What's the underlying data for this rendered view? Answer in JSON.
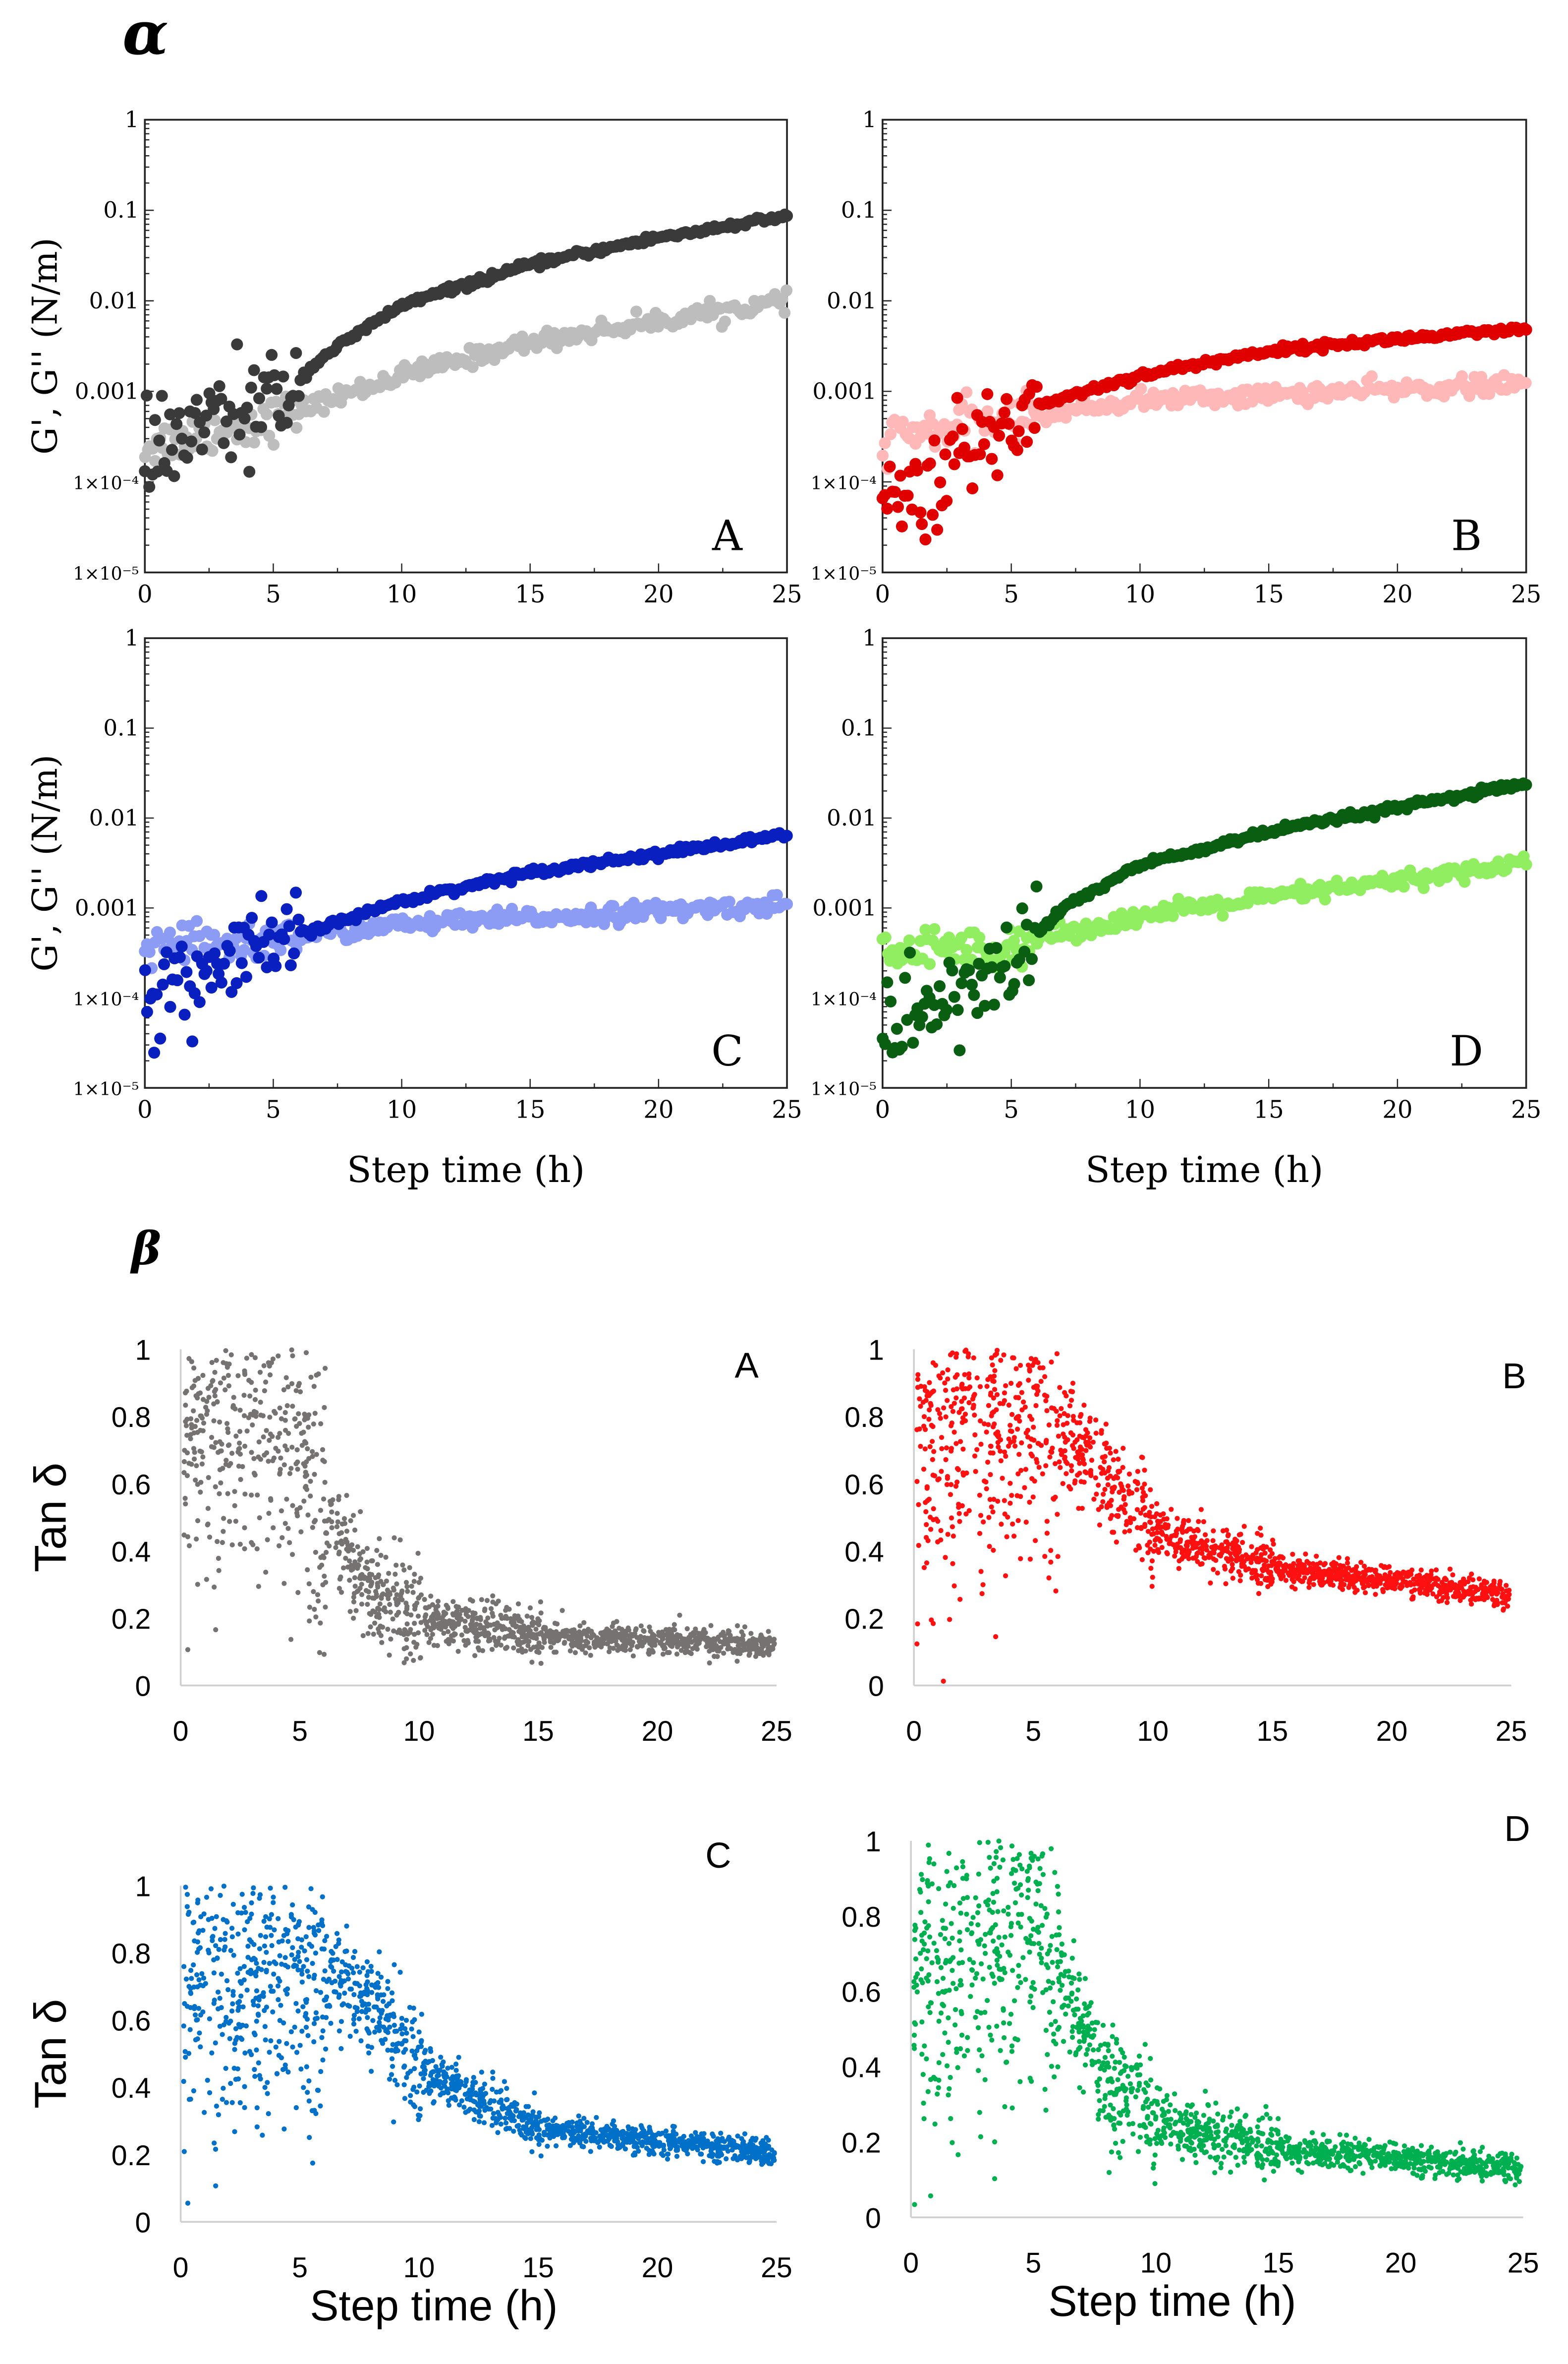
{
  "sections": {
    "alpha": "α",
    "beta": "β"
  },
  "chart_data": [
    {
      "id": "alpha-A",
      "type": "scatter",
      "panel_label": "A",
      "ylabel": "G', G'' (N/m)",
      "xlabel": "",
      "yscale": "log",
      "ylim": [
        1e-05,
        1
      ],
      "xlim": [
        0,
        25
      ],
      "xticks": [
        "0",
        "5",
        "10",
        "15",
        "20",
        "25"
      ],
      "yticks": [
        "1×10⁻⁵",
        "1×10⁻⁴",
        "0.001",
        "0.01",
        "0.1",
        "1"
      ],
      "series": [
        {
          "name": "G'",
          "color": "#3a3a3a",
          "trend": [
            [
              0,
              0.00015
            ],
            [
              2,
              0.0004
            ],
            [
              4,
              0.0006
            ],
            [
              5.5,
              0.001
            ],
            [
              7,
              0.0025
            ],
            [
              10,
              0.009
            ],
            [
              15,
              0.025
            ],
            [
              20,
              0.05
            ],
            [
              25,
              0.085
            ]
          ]
        },
        {
          "name": "G''",
          "color": "#bdbdbd",
          "trend": [
            [
              0,
              0.00025
            ],
            [
              5,
              0.0005
            ],
            [
              10,
              0.0015
            ],
            [
              15,
              0.0035
            ],
            [
              20,
              0.006
            ],
            [
              25,
              0.01
            ]
          ]
        }
      ]
    },
    {
      "id": "alpha-B",
      "type": "scatter",
      "panel_label": "B",
      "ylabel": "",
      "xlabel": "",
      "yscale": "log",
      "ylim": [
        1e-05,
        1
      ],
      "xlim": [
        0,
        25
      ],
      "xticks": [
        "0",
        "5",
        "10",
        "15",
        "20",
        "25"
      ],
      "yticks": [
        "1×10⁻⁵",
        "1×10⁻⁴",
        "0.001",
        "0.01",
        "0.1",
        "1"
      ],
      "series": [
        {
          "name": "G'",
          "color": "#e00000",
          "trend": [
            [
              0,
              5e-05
            ],
            [
              2,
              0.0001
            ],
            [
              4,
              0.0003
            ],
            [
              6,
              0.0007
            ],
            [
              10,
              0.0015
            ],
            [
              15,
              0.0028
            ],
            [
              20,
              0.0038
            ],
            [
              25,
              0.0048
            ]
          ]
        },
        {
          "name": "G''",
          "color": "#ffb8b8",
          "trend": [
            [
              0,
              0.0003
            ],
            [
              5,
              0.0005
            ],
            [
              10,
              0.0008
            ],
            [
              25,
              0.0012
            ]
          ]
        }
      ]
    },
    {
      "id": "alpha-C",
      "type": "scatter",
      "panel_label": "C",
      "ylabel": "G', G'' (N/m)",
      "xlabel": "Step time (h)",
      "yscale": "log",
      "ylim": [
        1e-05,
        1
      ],
      "xlim": [
        0,
        25
      ],
      "xticks": [
        "0",
        "5",
        "10",
        "15",
        "20",
        "25"
      ],
      "yticks": [
        "1×10⁻⁵",
        "1×10⁻⁴",
        "0.001",
        "0.01",
        "0.1",
        "1"
      ],
      "series": [
        {
          "name": "G'",
          "color": "#0a1fbf",
          "trend": [
            [
              0,
              0.0001
            ],
            [
              3,
              0.0002
            ],
            [
              6,
              0.0005
            ],
            [
              10,
              0.0012
            ],
            [
              15,
              0.0025
            ],
            [
              20,
              0.004
            ],
            [
              25,
              0.0065
            ]
          ]
        },
        {
          "name": "G''",
          "color": "#8c9cf5",
          "trend": [
            [
              0,
              0.00035
            ],
            [
              5,
              0.00045
            ],
            [
              10,
              0.00065
            ],
            [
              25,
              0.0011
            ]
          ]
        }
      ]
    },
    {
      "id": "alpha-D",
      "type": "scatter",
      "panel_label": "D",
      "ylabel": "",
      "xlabel": "Step time (h)",
      "yscale": "log",
      "ylim": [
        1e-05,
        1
      ],
      "xlim": [
        0,
        25
      ],
      "xticks": [
        "0",
        "5",
        "10",
        "15",
        "20",
        "25"
      ],
      "yticks": [
        "1×10⁻⁵",
        "1×10⁻⁴",
        "0.001",
        "0.01",
        "0.1",
        "1"
      ],
      "series": [
        {
          "name": "G'",
          "color": "#0a5e12",
          "trend": [
            [
              0,
              5e-05
            ],
            [
              3,
              0.0001
            ],
            [
              5,
              0.00025
            ],
            [
              7,
              0.001
            ],
            [
              10,
              0.003
            ],
            [
              15,
              0.007
            ],
            [
              20,
              0.013
            ],
            [
              25,
              0.024
            ]
          ]
        },
        {
          "name": "G''",
          "color": "#90ee60",
          "trend": [
            [
              0,
              0.0003
            ],
            [
              5,
              0.0004
            ],
            [
              10,
              0.0008
            ],
            [
              15,
              0.0013
            ],
            [
              20,
              0.002
            ],
            [
              25,
              0.0032
            ]
          ]
        }
      ]
    },
    {
      "id": "beta-A",
      "type": "scatter",
      "panel_label": "A",
      "ylabel": "Tan  δ",
      "xlabel": "",
      "ylim": [
        0,
        1
      ],
      "xlim": [
        0,
        25
      ],
      "xticks": [
        "0",
        "5",
        "10",
        "15",
        "20",
        "25"
      ],
      "yticks": [
        "0",
        "0.2",
        "0.4",
        "0.6",
        "0.8",
        "1"
      ],
      "series": [
        {
          "name": "Tan δ",
          "color": "#777272",
          "trend": [
            [
              0,
              0.75
            ],
            [
              3,
              0.8
            ],
            [
              5,
              0.75
            ],
            [
              6,
              0.5
            ],
            [
              7,
              0.35
            ],
            [
              8,
              0.27
            ],
            [
              10,
              0.2
            ],
            [
              15,
              0.15
            ],
            [
              25,
              0.12
            ]
          ]
        }
      ]
    },
    {
      "id": "beta-B",
      "type": "scatter",
      "panel_label": "B",
      "ylabel": "",
      "xlabel": "",
      "ylim": [
        0,
        1
      ],
      "xlim": [
        0,
        25
      ],
      "xticks": [
        "0",
        "5",
        "10",
        "15",
        "20",
        "25"
      ],
      "yticks": [
        "0",
        "0.2",
        "0.4",
        "0.6",
        "0.8",
        "1"
      ],
      "series": [
        {
          "name": "Tan δ",
          "color": "#ff1010",
          "trend": [
            [
              0,
              0.75
            ],
            [
              3,
              0.8
            ],
            [
              5,
              0.85
            ],
            [
              7,
              0.7
            ],
            [
              10,
              0.45
            ],
            [
              15,
              0.35
            ],
            [
              25,
              0.27
            ]
          ]
        }
      ]
    },
    {
      "id": "beta-C",
      "type": "scatter",
      "panel_label": "C",
      "ylabel": "Tan  δ",
      "xlabel": "Step time (h)",
      "ylim": [
        0,
        1
      ],
      "xlim": [
        0,
        25
      ],
      "xticks": [
        "0",
        "5",
        "10",
        "15",
        "20",
        "25"
      ],
      "yticks": [
        "0",
        "0.2",
        "0.4",
        "0.6",
        "0.8",
        "1"
      ],
      "series": [
        {
          "name": "Tan δ",
          "color": "#0070c8",
          "trend": [
            [
              0,
              0.7
            ],
            [
              5,
              0.75
            ],
            [
              8,
              0.65
            ],
            [
              10,
              0.45
            ],
            [
              15,
              0.28
            ],
            [
              25,
              0.2
            ]
          ]
        }
      ]
    },
    {
      "id": "beta-D",
      "type": "scatter",
      "panel_label": "D",
      "ylabel": "",
      "xlabel": "Step time (h)",
      "ylim": [
        0,
        1
      ],
      "xlim": [
        0,
        25
      ],
      "xticks": [
        "0",
        "5",
        "10",
        "15",
        "20",
        "25"
      ],
      "yticks": [
        "0",
        "0.2",
        "0.4",
        "0.6",
        "0.8",
        "1"
      ],
      "series": [
        {
          "name": "Tan δ",
          "color": "#00b050",
          "trend": [
            [
              0,
              0.6
            ],
            [
              5,
              0.85
            ],
            [
              6,
              0.65
            ],
            [
              8,
              0.35
            ],
            [
              10,
              0.25
            ],
            [
              15,
              0.18
            ],
            [
              25,
              0.13
            ]
          ]
        }
      ]
    }
  ]
}
